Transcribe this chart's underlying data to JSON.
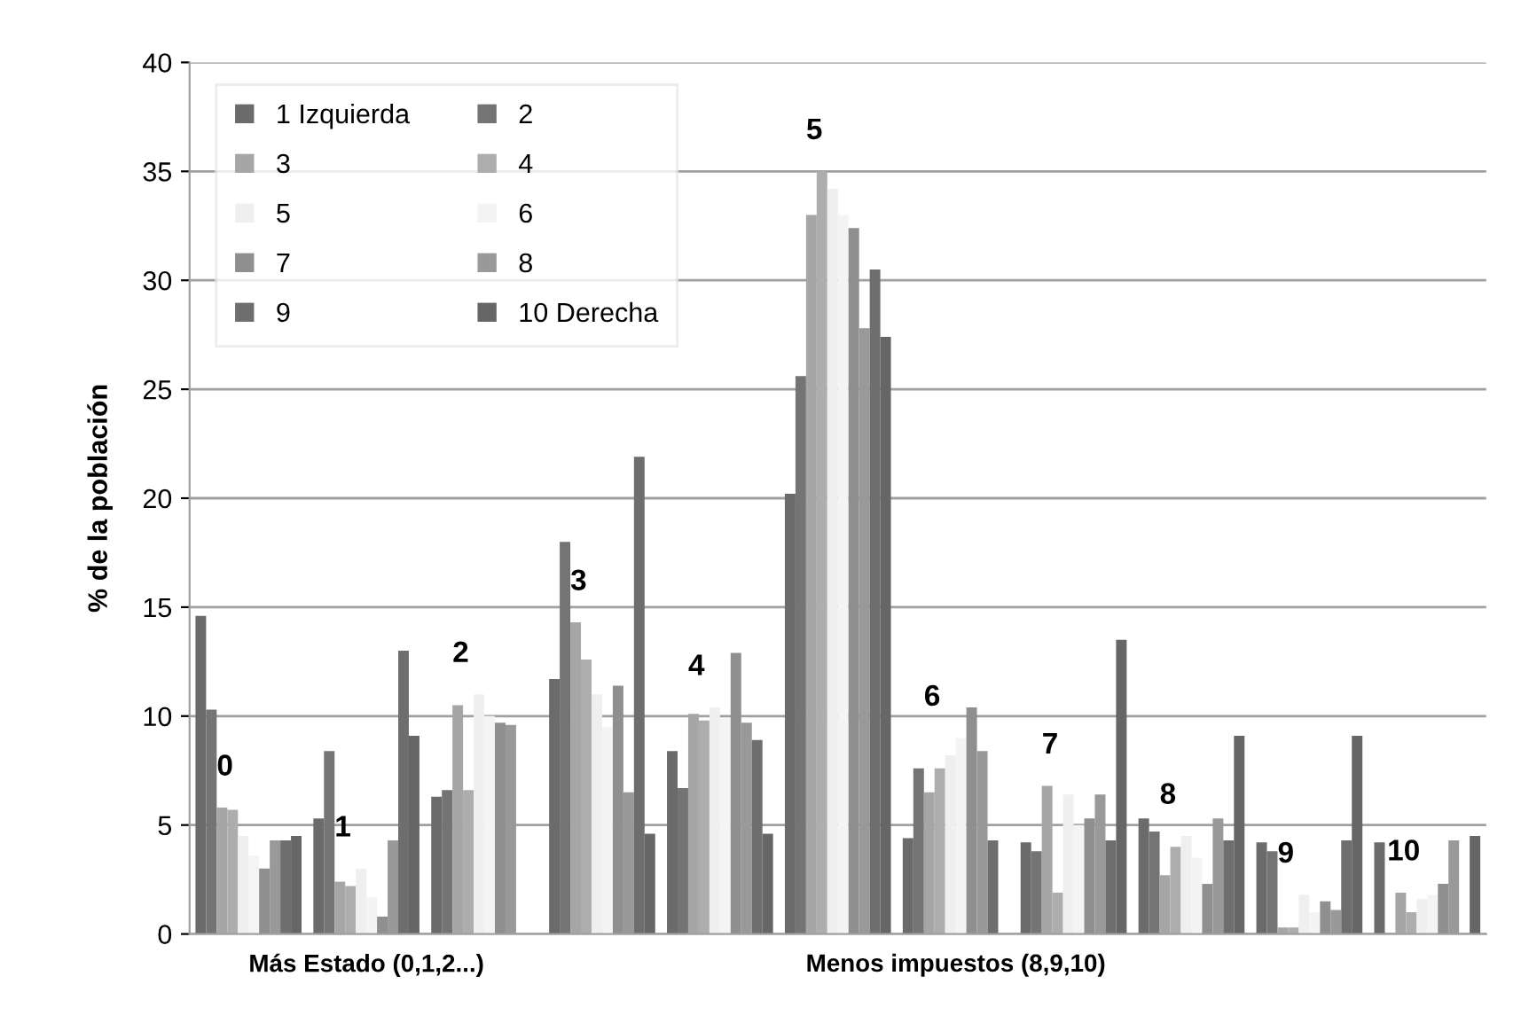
{
  "chart_data": {
    "type": "bar",
    "ylabel": "% de la población",
    "categories": [
      null,
      "Más Estado (0,1,2...)",
      null,
      null,
      null,
      null,
      "Menos impuestos (8,9,10)",
      null,
      null,
      null,
      null
    ],
    "series": [
      {
        "name": "1 Izquierda",
        "color": "#6b6b6b",
        "values": [
          14.6,
          5.3,
          6.3,
          11.7,
          8.4,
          20.2,
          4.4,
          4.2,
          5.3,
          4.2,
          4.2
        ]
      },
      {
        "name": "2",
        "color": "#747474",
        "values": [
          10.3,
          8.4,
          6.6,
          18.0,
          6.7,
          25.6,
          7.6,
          3.8,
          4.7,
          3.8,
          0
        ]
      },
      {
        "name": "3",
        "color": "#a6a6a6",
        "values": [
          5.8,
          2.4,
          10.5,
          14.3,
          10.1,
          33.0,
          6.5,
          6.8,
          2.7,
          0.3,
          1.9
        ]
      },
      {
        "name": "4",
        "color": "#adadad",
        "values": [
          5.7,
          2.2,
          6.6,
          12.6,
          9.8,
          35.0,
          7.6,
          1.9,
          4.0,
          0.3,
          1.0
        ]
      },
      {
        "name": "5",
        "color": "#efefef",
        "values": [
          4.5,
          3.0,
          11.0,
          11.0,
          10.4,
          34.2,
          8.2,
          6.4,
          4.5,
          1.8,
          1.6
        ]
      },
      {
        "name": "6",
        "color": "#f4f4f4",
        "values": [
          3.6,
          1.7,
          10.0,
          9.5,
          9.9,
          33.0,
          9.0,
          5.0,
          3.5,
          1.0,
          1.8
        ]
      },
      {
        "name": "7",
        "color": "#8f8f8f",
        "values": [
          3.0,
          0.8,
          9.7,
          11.4,
          12.9,
          32.4,
          10.4,
          5.3,
          2.3,
          1.5,
          2.3
        ]
      },
      {
        "name": "8",
        "color": "#999999",
        "values": [
          4.3,
          4.3,
          9.6,
          6.5,
          9.7,
          27.8,
          8.4,
          6.4,
          5.3,
          1.1,
          4.3
        ]
      },
      {
        "name": "9",
        "color": "#6e6e6e",
        "values": [
          4.3,
          13.0,
          0,
          21.9,
          8.9,
          30.5,
          4.3,
          4.3,
          4.3,
          4.3,
          0
        ]
      },
      {
        "name": "10 Derecha",
        "color": "#666666",
        "values": [
          4.5,
          9.1,
          0,
          4.6,
          4.6,
          27.4,
          0,
          13.5,
          9.1,
          9.1,
          4.5
        ]
      }
    ],
    "annotations": [
      "0",
      "1",
      "2",
      "3",
      "4",
      "5",
      "6",
      "7",
      "8",
      "9",
      "10"
    ],
    "ylim": [
      0,
      40
    ],
    "yticks": [
      0,
      5,
      10,
      15,
      20,
      25,
      30,
      35,
      40
    ],
    "grid": "y",
    "legend": "top left"
  }
}
